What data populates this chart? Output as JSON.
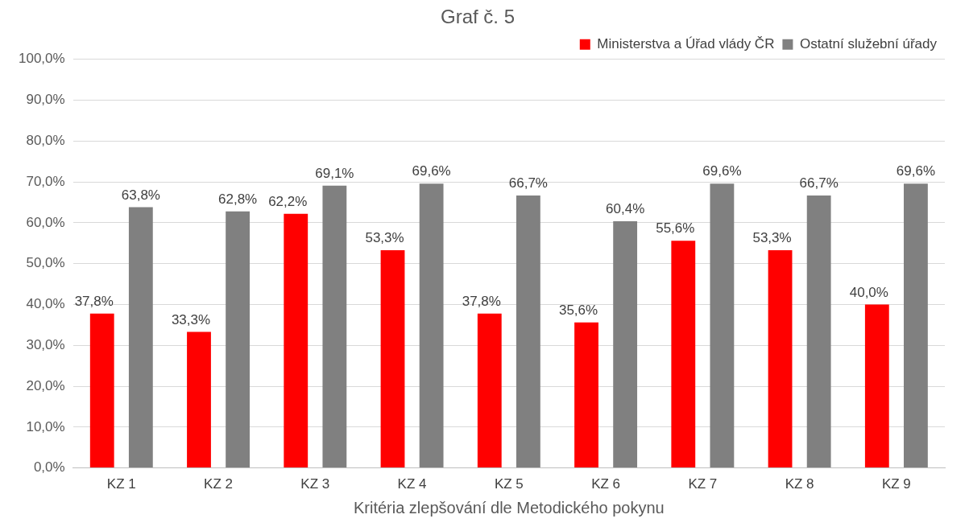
{
  "chart_data": {
    "type": "bar",
    "title": "Graf č. 5",
    "xlabel": "Kritéria zlepšování dle Metodického pokynu",
    "categories": [
      "KZ 1",
      "KZ 2",
      "KZ 3",
      "KZ 4",
      "KZ 5",
      "KZ 6",
      "KZ 7",
      "KZ 8",
      "KZ 9"
    ],
    "series": [
      {
        "name": "Ministerstva a Úřad vlády ČR",
        "color": "#ff0000",
        "values": [
          37.8,
          33.3,
          62.2,
          53.3,
          37.8,
          35.6,
          55.6,
          53.3,
          40.0
        ],
        "value_labels": [
          "37,8%",
          "33,3%",
          "62,2%",
          "53,3%",
          "37,8%",
          "35,6%",
          "55,6%",
          "53,3%",
          "40,0%"
        ]
      },
      {
        "name": "Ostatní služební úřady",
        "color": "#808080",
        "values": [
          63.8,
          62.8,
          69.1,
          69.6,
          66.7,
          60.4,
          69.6,
          66.7,
          69.6
        ],
        "value_labels": [
          "63,8%",
          "62,8%",
          "69,1%",
          "69,6%",
          "66,7%",
          "60,4%",
          "69,6%",
          "66,7%",
          "69,6%"
        ]
      }
    ],
    "ylim": [
      0,
      100
    ],
    "yticks": [
      {
        "value": 0,
        "label": "0,0%"
      },
      {
        "value": 10,
        "label": "10,0%"
      },
      {
        "value": 20,
        "label": "20,0%"
      },
      {
        "value": 30,
        "label": "30,0%"
      },
      {
        "value": 40,
        "label": "40,0%"
      },
      {
        "value": 50,
        "label": "50,0%"
      },
      {
        "value": 60,
        "label": "60,0%"
      },
      {
        "value": 70,
        "label": "70,0%"
      },
      {
        "value": 80,
        "label": "80,0%"
      },
      {
        "value": 90,
        "label": "90,0%"
      },
      {
        "value": 100,
        "label": "100,0%"
      }
    ],
    "grid": "y",
    "legend": "top right"
  }
}
